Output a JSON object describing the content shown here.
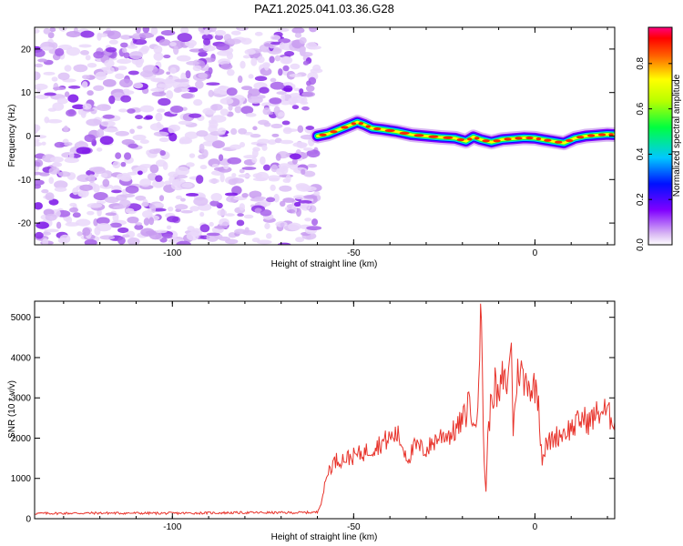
{
  "title": "PAZ1.2025.041.03.36.G28",
  "chart_data": [
    {
      "type": "heatmap",
      "xlabel": "Height of straight line (km)",
      "ylabel": "Frequency (Hz)",
      "xlim": [
        -138,
        22
      ],
      "ylim": [
        -25,
        25
      ],
      "xticks": [
        -100,
        -50,
        0
      ],
      "yticks": [
        -20,
        -10,
        0,
        10,
        20
      ],
      "colorbar": {
        "label": "Normalized spectral amplitude",
        "range": [
          0,
          0.96
        ],
        "ticks": [
          0.0,
          0.2,
          0.4,
          0.6,
          0.8
        ],
        "tick_labels": [
          "0.0",
          "0.2",
          "0.4",
          "0.6",
          "0.8"
        ]
      },
      "noise_region_x": [
        -138,
        -60
      ],
      "ridge": {
        "x": [
          -60,
          -57,
          -54,
          -51,
          -49,
          -47,
          -45,
          -42,
          -38,
          -34,
          -30,
          -26,
          -22,
          -19,
          -17,
          -15,
          -12,
          -9,
          -6,
          -3,
          0,
          2,
          5,
          8,
          11,
          14,
          17,
          20,
          22
        ],
        "frequency": [
          0.0,
          0.5,
          1.5,
          2.5,
          3.2,
          2.6,
          1.8,
          1.5,
          1.0,
          0.3,
          0.0,
          -0.3,
          -0.5,
          -1.2,
          -0.2,
          -0.8,
          -1.4,
          -0.8,
          -0.6,
          -0.4,
          -0.5,
          -0.8,
          -1.2,
          -1.6,
          -0.5,
          0.0,
          0.2,
          0.4,
          0.3
        ]
      }
    },
    {
      "type": "line",
      "xlabel": "Height of straight line (km)",
      "ylabel": "SNR (10 * v/v)",
      "xlim": [
        -138,
        22
      ],
      "ylim": [
        0,
        5400
      ],
      "xticks": [
        -100,
        -50,
        0
      ],
      "yticks": [
        0,
        1000,
        2000,
        3000,
        4000,
        5000
      ],
      "color": "#e8342c",
      "series": [
        {
          "x": [
            -138,
            -120,
            -100,
            -80,
            -65,
            -60,
            -59,
            -58,
            -57,
            -55,
            -52,
            -50,
            -47,
            -44,
            -41,
            -38,
            -35,
            -33,
            -30,
            -27,
            -25,
            -23,
            -21,
            -19,
            -18,
            -17,
            -16,
            -15.5,
            -15,
            -14.5,
            -14,
            -13.5,
            -13,
            -12,
            -11,
            -10,
            -9,
            -8,
            -7,
            -6.5,
            -6,
            -5,
            -4,
            -3,
            -2,
            -1,
            0,
            1,
            1.5,
            2,
            3,
            5,
            7,
            9,
            11,
            13,
            15,
            17,
            19,
            21,
            22
          ],
          "y": [
            130,
            140,
            135,
            150,
            150,
            160,
            400,
            800,
            1200,
            1450,
            1500,
            1550,
            1650,
            1800,
            1950,
            2100,
            1500,
            1800,
            1700,
            2000,
            2100,
            2100,
            2300,
            2600,
            3100,
            2100,
            2800,
            3600,
            5300,
            3500,
            1400,
            700,
            2000,
            3000,
            3300,
            2900,
            3500,
            3300,
            3700,
            4700,
            2100,
            3500,
            3800,
            3300,
            3500,
            3200,
            3300,
            3000,
            2100,
            1500,
            1800,
            2000,
            2100,
            2200,
            2300,
            2500,
            2400,
            2600,
            2700,
            2500,
            2550
          ]
        }
      ]
    }
  ]
}
